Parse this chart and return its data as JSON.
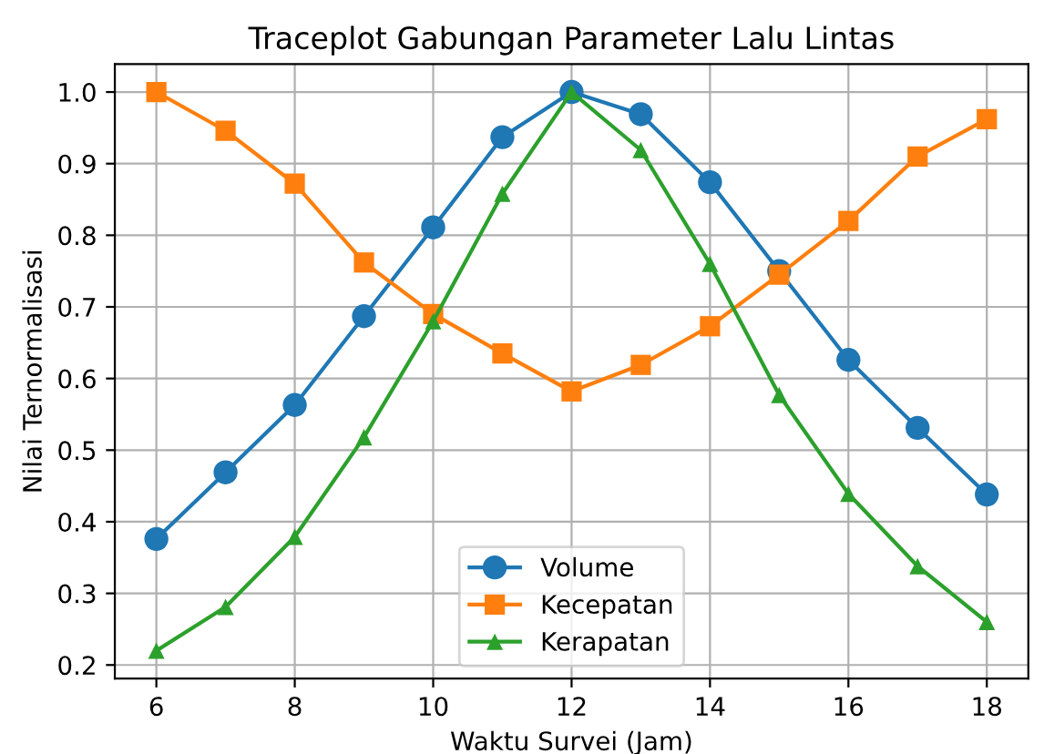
{
  "chart_data": {
    "type": "line",
    "title": "Traceplot Gabungan Parameter Lalu Lintas",
    "xlabel": "Waktu Survei (Jam)",
    "ylabel": "Nilai Ternormalisasi",
    "x": [
      6,
      7,
      8,
      9,
      10,
      11,
      12,
      13,
      14,
      15,
      16,
      17,
      18
    ],
    "series": [
      {
        "name": "Volume",
        "color": "#1f77b4",
        "marker": "circle",
        "values": [
          0.376,
          0.469,
          0.563,
          0.687,
          0.811,
          0.937,
          1.0,
          0.969,
          0.874,
          0.75,
          0.626,
          0.531,
          0.438
        ]
      },
      {
        "name": "Kecepatan",
        "color": "#ff7f0e",
        "marker": "square",
        "values": [
          1.0,
          0.946,
          0.872,
          0.762,
          0.69,
          0.635,
          0.582,
          0.619,
          0.673,
          0.745,
          0.82,
          0.91,
          0.962
        ]
      },
      {
        "name": "Kerapatan",
        "color": "#2ca02c",
        "marker": "triangle",
        "values": [
          0.22,
          0.281,
          0.379,
          0.518,
          0.68,
          0.858,
          1.0,
          0.919,
          0.76,
          0.577,
          0.439,
          0.338,
          0.26
        ]
      }
    ],
    "xlim": [
      5.4,
      18.6
    ],
    "ylim": [
      0.181,
      1.039
    ],
    "xticks": [
      6,
      8,
      10,
      12,
      14,
      16,
      18
    ],
    "yticks": [
      {
        "value": 0.2,
        "label": "0.2"
      },
      {
        "value": 0.3,
        "label": "0.3"
      },
      {
        "value": 0.4,
        "label": "0.4"
      },
      {
        "value": 0.5,
        "label": "0.5"
      },
      {
        "value": 0.6,
        "label": "0.6"
      },
      {
        "value": 0.7,
        "label": "0.7"
      },
      {
        "value": 0.8,
        "label": "0.8"
      },
      {
        "value": 0.9,
        "label": "0.9"
      },
      {
        "value": 1.0,
        "label": "1.0"
      }
    ],
    "grid": true,
    "legend": "bottom",
    "line_style": "solid"
  }
}
